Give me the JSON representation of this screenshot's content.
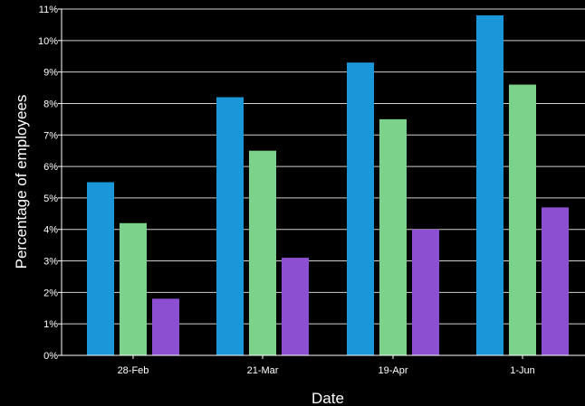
{
  "chart_data": {
    "type": "bar",
    "title": "",
    "xlabel": "Date",
    "ylabel": "Percentage of employees",
    "categories": [
      "28-Feb",
      "21-Mar",
      "19-Apr",
      "1-Jun"
    ],
    "series": [
      {
        "color": "#1a97d8",
        "values": [
          5.5,
          8.2,
          9.3,
          10.8
        ]
      },
      {
        "color": "#7dd28b",
        "values": [
          4.2,
          6.5,
          7.5,
          8.6
        ]
      },
      {
        "color": "#8c4fd1",
        "values": [
          1.8,
          3.1,
          4.0,
          4.7
        ]
      }
    ],
    "ylim": [
      0,
      11
    ],
    "yticks": [
      0,
      1,
      2,
      3,
      4,
      5,
      6,
      7,
      8,
      9,
      10,
      11
    ],
    "ytick_labels": [
      "0%",
      "1%",
      "2%",
      "3%",
      "4%",
      "5%",
      "6%",
      "7%",
      "8%",
      "9%",
      "10%",
      "11%"
    ],
    "grid": true,
    "legend": "none"
  }
}
